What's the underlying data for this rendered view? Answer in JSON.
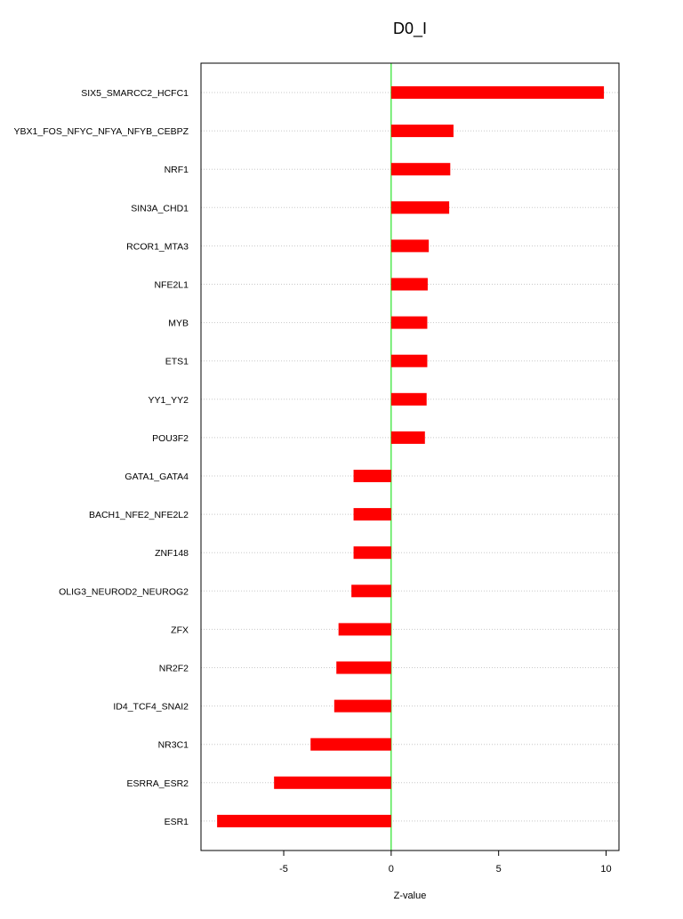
{
  "chart_data": {
    "type": "bar",
    "orientation": "horizontal",
    "title": "D0_I",
    "xlabel": "Z-value",
    "ylabel": "",
    "xlim": [
      -8.85,
      10.6
    ],
    "xticks": [
      -5,
      0,
      5,
      10
    ],
    "xtick_labels": [
      "-5",
      "0",
      "5",
      "10"
    ],
    "grid": "horizontal dotted",
    "zero_line_color": "#00dd00",
    "bar_color": "#ff0000",
    "categories": [
      "SIX5_SMARCC2_HCFC1",
      "YBX1_FOS_NFYC_NFYA_NFYB_CEBPZ",
      "NRF1",
      "SIN3A_CHD1",
      "RCOR1_MTA3",
      "NFE2L1",
      "MYB",
      "ETS1",
      "YY1_YY2",
      "POU3F2",
      "GATA1_GATA4",
      "BACH1_NFE2_NFE2L2",
      "ZNF148",
      "OLIG3_NEUROD2_NEUROG2",
      "ZFX",
      "NR2F2",
      "ID4_TCF4_SNAI2",
      "NR3C1",
      "ESRRA_ESR2",
      "ESR1"
    ],
    "values": [
      9.9,
      2.9,
      2.75,
      2.7,
      1.75,
      1.7,
      1.68,
      1.68,
      1.65,
      1.57,
      -1.75,
      -1.75,
      -1.75,
      -1.85,
      -2.45,
      -2.55,
      -2.65,
      -3.75,
      -5.45,
      -8.1
    ]
  }
}
